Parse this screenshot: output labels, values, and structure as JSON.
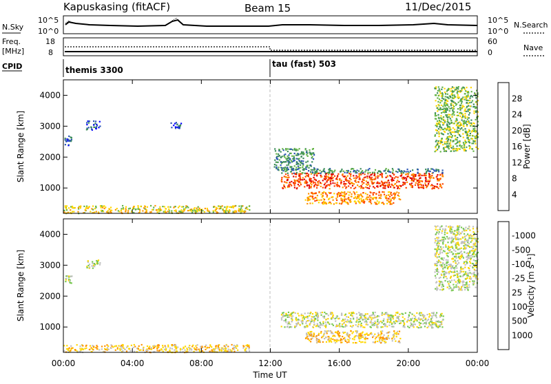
{
  "header": {
    "station": "Kapuskasing (fitACF)",
    "beam": "Beam 15",
    "date": "11/Dec/2015"
  },
  "nsky_panel": {
    "left_label": "N.Sky",
    "right_label": "N.Search",
    "left_ticks": [
      "10^5",
      "10^0"
    ],
    "right_ticks": [
      "10^5",
      "10^0"
    ]
  },
  "freq_panel": {
    "left_label_1": "Freq.",
    "left_label_2": "[MHz]",
    "left_ticks": [
      "18",
      "8"
    ],
    "right_ticks": [
      "60",
      "0"
    ],
    "right_label": "Nave"
  },
  "cpid_panel": {
    "label": "CPID",
    "segments": [
      {
        "name": "themis 3300",
        "start_hour": 0
      },
      {
        "name": "tau (fast) 503",
        "start_hour": 12
      }
    ]
  },
  "chart_data": [
    {
      "type": "heatmap",
      "name": "power",
      "ylabel": "Slant Range [km]",
      "ylim": [
        180,
        4500
      ],
      "yticks": [
        1000,
        2000,
        3000,
        4000
      ],
      "xlim": [
        0,
        24
      ],
      "colorbar_label": "Power [dB]",
      "colorbar_ticks": [
        "4",
        "8",
        "12",
        "16",
        "20",
        "24",
        "28"
      ],
      "colorbar_colors": [
        "#0000ff",
        "#2a55b4",
        "#3c8c5a",
        "#64b446",
        "#ffd700",
        "#ff9400",
        "#ff4400",
        "#e00000"
      ],
      "regions": [
        {
          "x": [
            0.0,
            10.8
          ],
          "y": [
            200,
            450
          ],
          "level": 4
        },
        {
          "x": [
            1.3,
            2.1
          ],
          "y": [
            2900,
            3200
          ],
          "level": 1
        },
        {
          "x": [
            0.0,
            0.5
          ],
          "y": [
            2400,
            2700
          ],
          "level": 1
        },
        {
          "x": [
            6.2,
            6.8
          ],
          "y": [
            2950,
            3150
          ],
          "level": 1
        },
        {
          "x": [
            12.6,
            22.0
          ],
          "y": [
            1000,
            1500
          ],
          "level": 6
        },
        {
          "x": [
            14.0,
            19.5
          ],
          "y": [
            500,
            900
          ],
          "level": 5
        },
        {
          "x": [
            12.2,
            14.5
          ],
          "y": [
            1600,
            2300
          ],
          "level": 2
        },
        {
          "x": [
            21.5,
            24.0
          ],
          "y": [
            2200,
            4300
          ],
          "level": 3
        },
        {
          "x": [
            12.6,
            22.0
          ],
          "y": [
            1500,
            1650
          ],
          "level": 2
        }
      ]
    },
    {
      "type": "heatmap",
      "name": "velocity",
      "ylabel": "Slant Range [km]",
      "ylim": [
        180,
        4500
      ],
      "yticks": [
        1000,
        2000,
        3000,
        4000
      ],
      "xlim": [
        0,
        24
      ],
      "colorbar_label": "Velocity [m s⁻¹]",
      "colorbar_ticks": [
        "1000",
        "500",
        "100",
        "25",
        "-25",
        "-100",
        "-500",
        "-1000"
      ],
      "colorbar_colors": [
        "#2050c0",
        "#3c8c5a",
        "#64b446",
        "#78c850",
        "#c0c0c0",
        "#ffd700",
        "#ff9400",
        "#ff4400",
        "#e00000"
      ],
      "regions": [
        {
          "x": [
            0.0,
            10.8
          ],
          "y": [
            200,
            450
          ],
          "level": 5
        },
        {
          "x": [
            1.3,
            2.1
          ],
          "y": [
            2900,
            3200
          ],
          "level": 4
        },
        {
          "x": [
            0.0,
            0.5
          ],
          "y": [
            2400,
            2700
          ],
          "level": 4
        },
        {
          "x": [
            12.6,
            22.0
          ],
          "y": [
            1000,
            1500
          ],
          "level": 4
        },
        {
          "x": [
            14.0,
            19.5
          ],
          "y": [
            500,
            900
          ],
          "level": 5
        },
        {
          "x": [
            21.5,
            24.0
          ],
          "y": [
            2200,
            4300
          ],
          "level": 4
        }
      ]
    }
  ],
  "x_axis": {
    "ticks": [
      "00:00",
      "04:00",
      "08:00",
      "12:00",
      "16:00",
      "20:00",
      "00:00"
    ],
    "label": "Time UT"
  }
}
